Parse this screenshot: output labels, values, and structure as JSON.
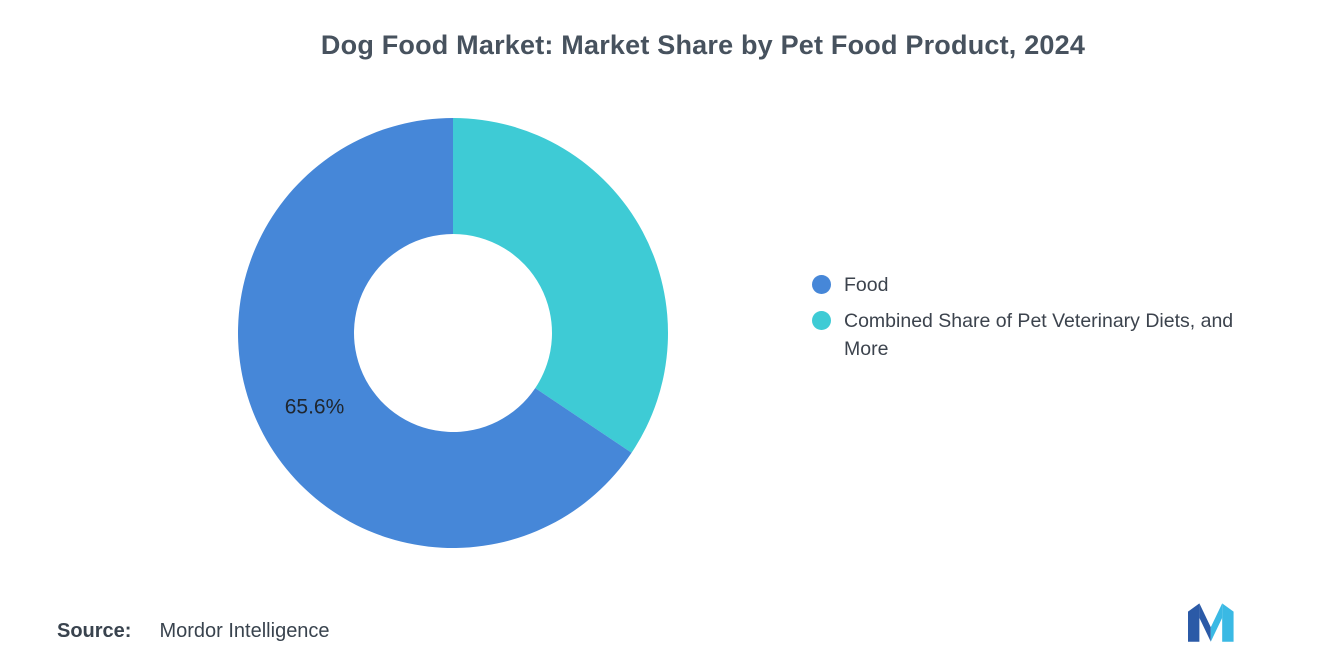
{
  "title": "Dog Food Market: Market Share by Pet Food Product, 2024",
  "chart_data": {
    "type": "pie",
    "subtype": "donut",
    "title": "Dog Food Market: Market Share by Pet Food Product, 2024",
    "categories": [
      "Food",
      "Combined Share of Pet Veterinary Diets, and More"
    ],
    "values": [
      65.6,
      34.4
    ],
    "colors": [
      "#4687d8",
      "#3ecbd5"
    ],
    "start_angle_deg": 0,
    "direction": "clockwise",
    "inner_radius_ratio": 0.46,
    "legend_position": "right",
    "slices": [
      {
        "label": "Combined Share of Pet Veterinary Diets, and More",
        "value": 34.4,
        "color": "#3ecbd5"
      },
      {
        "label": "Food",
        "value": 65.6,
        "color": "#4687d8",
        "data_label": "65.6%"
      }
    ]
  },
  "legend": {
    "items": [
      {
        "label": "Food",
        "color": "#4687d8"
      },
      {
        "label": "Combined Share of Pet Veterinary Diets, and More",
        "color": "#3ecbd5"
      }
    ]
  },
  "footer": {
    "source_label": "Source:",
    "source_value": "Mordor Intelligence"
  },
  "logo": {
    "name": "mordor-intelligence-logo",
    "colors": {
      "dark": "#2b5aa7",
      "light": "#3ab9e4"
    }
  }
}
